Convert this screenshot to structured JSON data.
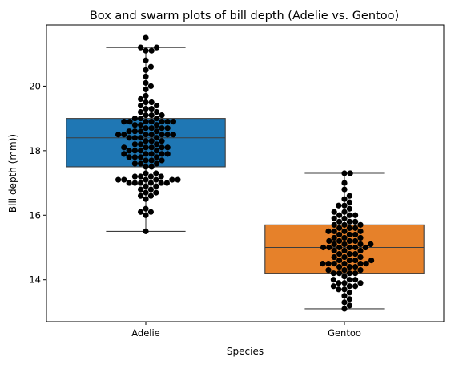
{
  "chart_data": {
    "type": "box",
    "title": "Box and swarm plots of bill depth (Adelie vs. Gentoo)",
    "xlabel": "Species",
    "ylabel": "Bill depth (mm))",
    "categories": [
      "Adelie",
      "Gentoo"
    ],
    "yticks": [
      14,
      16,
      18,
      20
    ],
    "ylim": [
      12.7,
      21.9
    ],
    "grid": false,
    "boxes": [
      {
        "name": "Adelie",
        "color": "#1f77b4",
        "whisker_low": 15.5,
        "q1": 17.5,
        "median": 18.4,
        "q3": 19.0,
        "whisker_high": 21.2
      },
      {
        "name": "Gentoo",
        "color": "#e6812a",
        "whisker_low": 13.1,
        "q1": 14.2,
        "median": 15.0,
        "q3": 15.7,
        "whisker_high": 17.3
      }
    ],
    "swarm_color": "#000000",
    "swarm": [
      {
        "category": "Adelie",
        "values": [
          15.5,
          16.0,
          16.1,
          16.1,
          16.2,
          16.5,
          16.6,
          16.6,
          16.7,
          16.7,
          16.8,
          16.8,
          16.9,
          16.9,
          17.0,
          17.0,
          17.0,
          17.0,
          17.0,
          17.0,
          17.1,
          17.1,
          17.1,
          17.1,
          17.1,
          17.1,
          17.2,
          17.2,
          17.2,
          17.2,
          17.3,
          17.3,
          17.5,
          17.5,
          17.6,
          17.6,
          17.6,
          17.7,
          17.7,
          17.7,
          17.8,
          17.8,
          17.8,
          17.8,
          17.9,
          17.9,
          17.9,
          17.9,
          17.9,
          18.0,
          18.0,
          18.0,
          18.0,
          18.1,
          18.1,
          18.1,
          18.1,
          18.1,
          18.2,
          18.2,
          18.2,
          18.3,
          18.3,
          18.3,
          18.4,
          18.4,
          18.4,
          18.4,
          18.5,
          18.5,
          18.5,
          18.5,
          18.5,
          18.5,
          18.5,
          18.6,
          18.6,
          18.6,
          18.6,
          18.7,
          18.7,
          18.7,
          18.7,
          18.8,
          18.8,
          18.8,
          18.9,
          18.9,
          18.9,
          18.9,
          18.9,
          18.9,
          18.9,
          19.0,
          19.0,
          19.0,
          19.1,
          19.1,
          19.1,
          19.2,
          19.2,
          19.3,
          19.3,
          19.4,
          19.4,
          19.5,
          19.5,
          19.6,
          19.7,
          19.9,
          20.0,
          20.1,
          20.3,
          20.5,
          20.6,
          20.8,
          21.1,
          21.1,
          21.2,
          21.2,
          21.5
        ]
      },
      {
        "category": "Gentoo",
        "values": [
          13.1,
          13.2,
          13.3,
          13.4,
          13.5,
          13.6,
          13.7,
          13.7,
          13.8,
          13.8,
          13.9,
          13.9,
          14.0,
          14.0,
          14.1,
          14.2,
          14.2,
          14.2,
          14.3,
          14.3,
          14.4,
          14.4,
          14.5,
          14.5,
          14.5,
          14.5,
          14.5,
          14.6,
          14.6,
          14.6,
          14.7,
          14.7,
          14.8,
          14.8,
          14.8,
          14.9,
          14.9,
          15.0,
          15.0,
          15.0,
          15.0,
          15.0,
          15.1,
          15.1,
          15.1,
          15.2,
          15.2,
          15.2,
          15.3,
          15.3,
          15.4,
          15.4,
          15.5,
          15.5,
          15.5,
          15.6,
          15.6,
          15.7,
          15.7,
          15.7,
          15.8,
          15.8,
          15.9,
          15.9,
          16.0,
          16.0,
          16.1,
          16.1,
          16.2,
          16.3,
          16.4,
          16.5,
          16.6,
          16.8,
          17.0,
          17.3,
          17.3,
          13.8,
          14.0,
          14.3,
          14.5,
          14.6,
          14.9,
          15.0,
          15.2,
          15.4,
          15.6,
          15.8,
          16.0,
          16.3,
          14.2,
          14.7,
          15.1,
          15.5,
          13.9,
          14.4,
          15.3
        ]
      }
    ]
  }
}
